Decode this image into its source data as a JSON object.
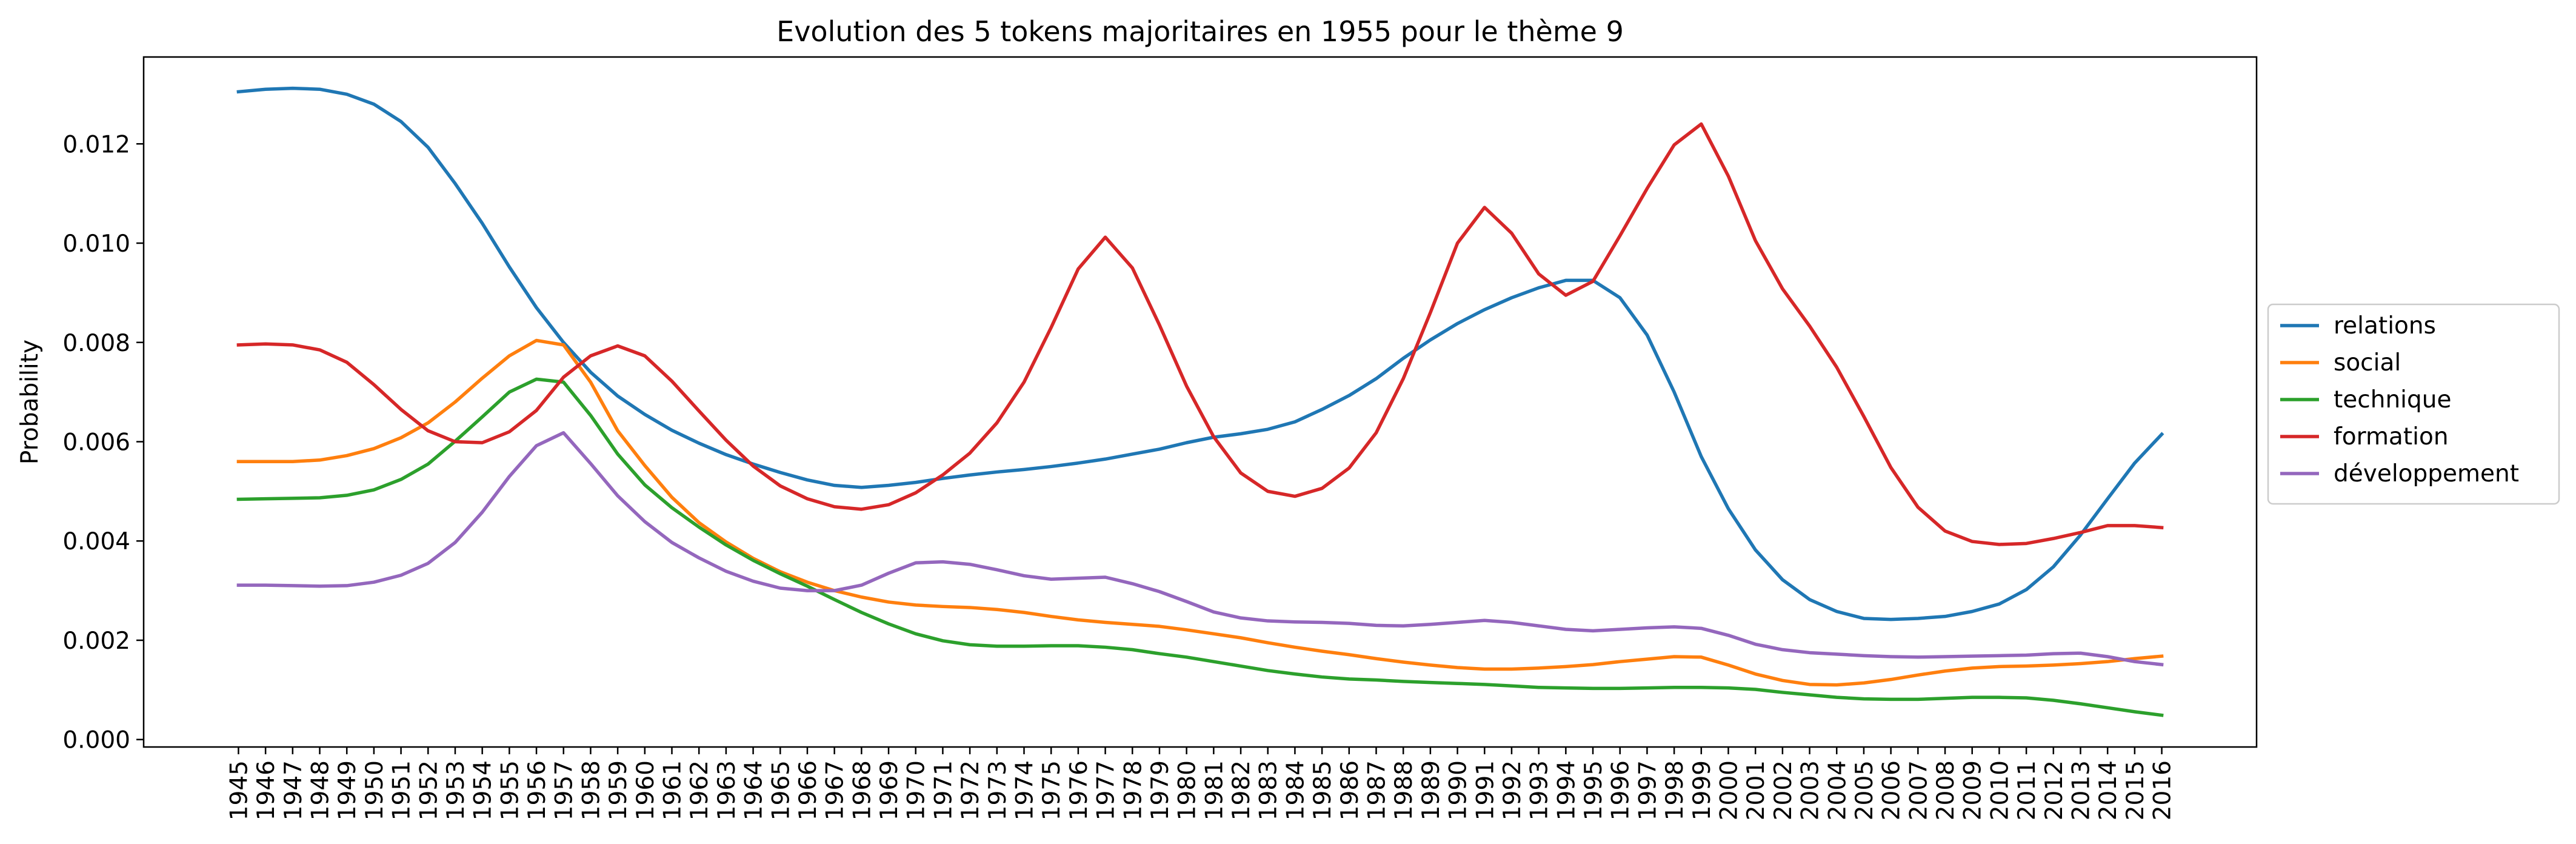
{
  "chart_data": {
    "type": "line",
    "title": "Evolution des 5 tokens majoritaires en 1955 pour le thème 9",
    "xlabel": "",
    "ylabel": "Probability",
    "xlim": [
      1941.5,
      2019.5
    ],
    "ylim": [
      -0.00015,
      0.01375
    ],
    "yticks": [
      0.0,
      0.002,
      0.004,
      0.006,
      0.008,
      0.01,
      0.012
    ],
    "ytick_labels": [
      "0.000",
      "0.002",
      "0.004",
      "0.006",
      "0.008",
      "0.010",
      "0.012"
    ],
    "x": [
      1945,
      1946,
      1947,
      1948,
      1949,
      1950,
      1951,
      1952,
      1953,
      1954,
      1955,
      1956,
      1957,
      1958,
      1959,
      1960,
      1961,
      1962,
      1963,
      1964,
      1965,
      1966,
      1967,
      1968,
      1969,
      1970,
      1971,
      1972,
      1973,
      1974,
      1975,
      1976,
      1977,
      1978,
      1979,
      1980,
      1981,
      1982,
      1983,
      1984,
      1985,
      1986,
      1987,
      1988,
      1989,
      1990,
      1991,
      1992,
      1993,
      1994,
      1995,
      1996,
      1997,
      1998,
      1999,
      2000,
      2001,
      2002,
      2003,
      2004,
      2005,
      2006,
      2007,
      2008,
      2009,
      2010,
      2011,
      2012,
      2013,
      2014,
      2015,
      2016
    ],
    "xtick_labels": [
      "1945",
      "1946",
      "1947",
      "1948",
      "1949",
      "1950",
      "1951",
      "1952",
      "1953",
      "1954",
      "1955",
      "1956",
      "1957",
      "1958",
      "1959",
      "1960",
      "1961",
      "1962",
      "1963",
      "1964",
      "1965",
      "1966",
      "1967",
      "1968",
      "1969",
      "1970",
      "1971",
      "1972",
      "1973",
      "1974",
      "1975",
      "1976",
      "1977",
      "1978",
      "1979",
      "1980",
      "1981",
      "1982",
      "1983",
      "1984",
      "1985",
      "1986",
      "1987",
      "1988",
      "1989",
      "1990",
      "1991",
      "1992",
      "1993",
      "1994",
      "1995",
      "1996",
      "1997",
      "1998",
      "1999",
      "2000",
      "2001",
      "2002",
      "2003",
      "2004",
      "2005",
      "2006",
      "2007",
      "2008",
      "2009",
      "2010",
      "2011",
      "2012",
      "2013",
      "2014",
      "2015",
      "2016"
    ],
    "grid": false,
    "legend": "right",
    "series": [
      {
        "name": "relations",
        "color": "#1f77b4",
        "values": [
          0.01305,
          0.0131,
          0.01312,
          0.0131,
          0.013,
          0.0128,
          0.01245,
          0.01193,
          0.0112,
          0.0104,
          0.00952,
          0.0087,
          0.008,
          0.0074,
          0.00692,
          0.00655,
          0.00623,
          0.00597,
          0.00574,
          0.00555,
          0.00538,
          0.00523,
          0.00512,
          0.00508,
          0.00512,
          0.00518,
          0.00526,
          0.00533,
          0.00539,
          0.00544,
          0.0055,
          0.00557,
          0.00565,
          0.00575,
          0.00585,
          0.00598,
          0.00609,
          0.00616,
          0.00625,
          0.0064,
          0.00665,
          0.00693,
          0.00727,
          0.00768,
          0.00805,
          0.00838,
          0.00866,
          0.0089,
          0.0091,
          0.00925,
          0.00925,
          0.0089,
          0.00815,
          0.007,
          0.0057,
          0.00465,
          0.00382,
          0.00322,
          0.00282,
          0.00258,
          0.00244,
          0.00242,
          0.00244,
          0.00248,
          0.00258,
          0.00273,
          0.00302,
          0.00348,
          0.00412,
          0.00485,
          0.00557,
          0.00615
        ]
      },
      {
        "name": "social",
        "color": "#ff7f0e",
        "values": [
          0.0056,
          0.0056,
          0.0056,
          0.00563,
          0.00572,
          0.00586,
          0.00608,
          0.00638,
          0.0068,
          0.00728,
          0.00773,
          0.00804,
          0.00795,
          0.0072,
          0.00622,
          0.00552,
          0.00488,
          0.00437,
          0.00398,
          0.00365,
          0.00338,
          0.00317,
          0.003,
          0.00287,
          0.00277,
          0.00271,
          0.00268,
          0.00266,
          0.00262,
          0.00256,
          0.00248,
          0.00241,
          0.00236,
          0.00232,
          0.00228,
          0.00221,
          0.00213,
          0.00205,
          0.00195,
          0.00186,
          0.00178,
          0.00171,
          0.00163,
          0.00156,
          0.0015,
          0.00145,
          0.00142,
          0.00142,
          0.00144,
          0.00147,
          0.00151,
          0.00157,
          0.00162,
          0.00167,
          0.00166,
          0.0015,
          0.00132,
          0.00119,
          0.00111,
          0.0011,
          0.00114,
          0.00121,
          0.0013,
          0.00138,
          0.00144,
          0.00147,
          0.00148,
          0.0015,
          0.00153,
          0.00157,
          0.00163,
          0.00168
        ]
      },
      {
        "name": "technique",
        "color": "#2ca02c",
        "values": [
          0.00484,
          0.00485,
          0.00486,
          0.00487,
          0.00492,
          0.00503,
          0.00524,
          0.00555,
          0.00601,
          0.0065,
          0.007,
          0.00726,
          0.0072,
          0.00653,
          0.00575,
          0.00513,
          0.00467,
          0.00428,
          0.00392,
          0.00361,
          0.00334,
          0.00309,
          0.00282,
          0.00256,
          0.00233,
          0.00213,
          0.00199,
          0.00191,
          0.00188,
          0.00188,
          0.00189,
          0.00189,
          0.00186,
          0.00181,
          0.00173,
          0.00166,
          0.00157,
          0.00148,
          0.00139,
          0.00132,
          0.00126,
          0.00122,
          0.0012,
          0.00117,
          0.00115,
          0.00113,
          0.00111,
          0.00108,
          0.00105,
          0.00104,
          0.00103,
          0.00103,
          0.00104,
          0.00105,
          0.00105,
          0.00104,
          0.00101,
          0.00095,
          0.0009,
          0.00085,
          0.00082,
          0.00081,
          0.00081,
          0.00083,
          0.00085,
          0.00085,
          0.00084,
          0.00079,
          0.00072,
          0.00064,
          0.00056,
          0.00049
        ]
      },
      {
        "name": "formation",
        "color": "#d62728",
        "values": [
          0.00795,
          0.00797,
          0.00795,
          0.00785,
          0.0076,
          0.00715,
          0.00665,
          0.00622,
          0.006,
          0.00598,
          0.0062,
          0.00663,
          0.0073,
          0.00773,
          0.00793,
          0.00773,
          0.00722,
          0.00662,
          0.00603,
          0.00551,
          0.00511,
          0.00485,
          0.00469,
          0.00464,
          0.00473,
          0.00497,
          0.00533,
          0.00577,
          0.00638,
          0.0072,
          0.0083,
          0.00948,
          0.01012,
          0.0095,
          0.00835,
          0.00712,
          0.0061,
          0.00537,
          0.005,
          0.0049,
          0.00506,
          0.00547,
          0.00618,
          0.00727,
          0.0086,
          0.01,
          0.01072,
          0.0102,
          0.00938,
          0.00895,
          0.00923,
          0.01015,
          0.0111,
          0.01198,
          0.0124,
          0.01135,
          0.01005,
          0.00908,
          0.00833,
          0.0075,
          0.00651,
          0.00548,
          0.00468,
          0.0042,
          0.00399,
          0.00393,
          0.00395,
          0.00405,
          0.00417,
          0.00431,
          0.00431,
          0.00427
        ]
      },
      {
        "name": "développement",
        "color": "#9467bd",
        "values": [
          0.00311,
          0.00311,
          0.0031,
          0.00309,
          0.0031,
          0.00317,
          0.00331,
          0.00355,
          0.00397,
          0.00458,
          0.0053,
          0.00592,
          0.00618,
          0.00556,
          0.00491,
          0.00439,
          0.00397,
          0.00366,
          0.00339,
          0.00319,
          0.00305,
          0.003,
          0.003,
          0.00311,
          0.00335,
          0.00356,
          0.00358,
          0.00353,
          0.00342,
          0.0033,
          0.00323,
          0.00325,
          0.00327,
          0.00314,
          0.00298,
          0.00278,
          0.00257,
          0.00245,
          0.00239,
          0.00237,
          0.00236,
          0.00234,
          0.0023,
          0.00229,
          0.00232,
          0.00236,
          0.0024,
          0.00236,
          0.00229,
          0.00222,
          0.00219,
          0.00222,
          0.00225,
          0.00227,
          0.00224,
          0.0021,
          0.00192,
          0.00181,
          0.00175,
          0.00172,
          0.00169,
          0.00167,
          0.00166,
          0.00167,
          0.00168,
          0.00169,
          0.0017,
          0.00173,
          0.00174,
          0.00167,
          0.00157,
          0.00151
        ]
      }
    ]
  }
}
